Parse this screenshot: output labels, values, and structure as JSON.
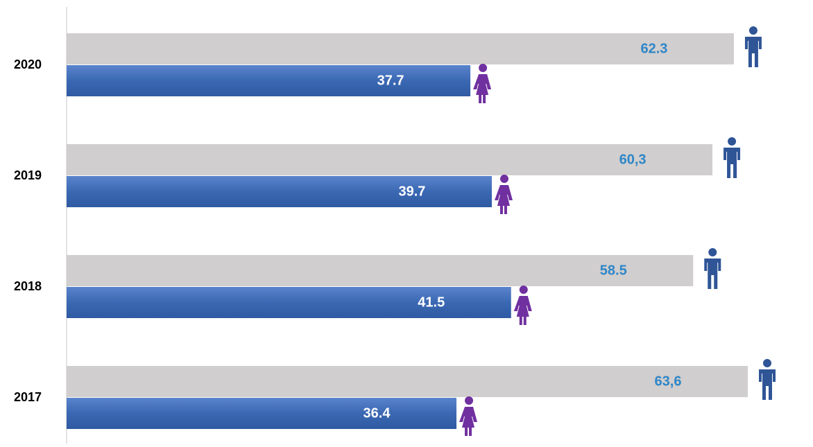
{
  "chart_data": {
    "type": "bar",
    "orientation": "horizontal",
    "categories": [
      "2020",
      "2019",
      "2018",
      "2017"
    ],
    "series": [
      {
        "color": "#d0cece",
        "label_color": "#2e86c8",
        "icon_color": "#2f5597",
        "icon": "male",
        "values": [
          62.3,
          60.3,
          58.5,
          63.6
        ],
        "value_labels": [
          "62.3",
          "60,3",
          "58.5",
          "63,6"
        ]
      },
      {
        "color": "#3b68b3",
        "label_color": "#ffffff",
        "icon_color": "#7030a0",
        "icon": "female",
        "values": [
          37.7,
          39.7,
          41.5,
          36.4
        ]
      }
    ]
  }
}
